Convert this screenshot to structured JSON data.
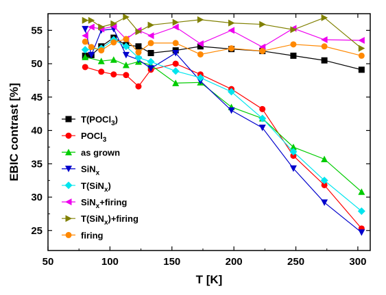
{
  "chart_data": {
    "type": "line",
    "xlabel": "T [K]",
    "ylabel": "EBIC contrast [%]",
    "xlim": [
      50,
      310
    ],
    "ylim": [
      22,
      57.5
    ],
    "x_ticks": [
      50,
      100,
      150,
      200,
      250,
      300
    ],
    "y_ticks": [
      25,
      30,
      35,
      40,
      45,
      50,
      55
    ],
    "grid": false,
    "legend_position": "left",
    "series": [
      {
        "name": "T(POCl3)",
        "legend_main": "T(POCl",
        "legend_sub": "3",
        "legend_tail": ")",
        "color": "#000000",
        "marker": "square",
        "x": [
          80,
          85,
          93,
          103,
          113,
          123,
          133,
          153,
          173,
          198,
          223,
          248,
          273,
          303
        ],
        "y": [
          51.2,
          51.3,
          52.6,
          53.9,
          52.8,
          52.6,
          51.6,
          52.0,
          52.6,
          52.2,
          51.9,
          51.2,
          50.5,
          49.1
        ]
      },
      {
        "name": "POCl3",
        "legend_main": "POCl",
        "legend_sub": "3",
        "legend_tail": "",
        "color": "#ff0000",
        "marker": "circle",
        "x": [
          80,
          93,
          103,
          113,
          123,
          133,
          153,
          173,
          198,
          223,
          248,
          273,
          303
        ],
        "y": [
          49.5,
          48.8,
          48.4,
          48.3,
          46.6,
          49.1,
          50.0,
          48.4,
          46.2,
          43.2,
          36.2,
          31.8,
          25.3
        ]
      },
      {
        "name": "as grown",
        "legend_main": "as grown",
        "legend_sub": "",
        "legend_tail": "",
        "color": "#00cc00",
        "marker": "triangle-up",
        "x": [
          80,
          93,
          103,
          113,
          123,
          133,
          153,
          173,
          198,
          223,
          248,
          273,
          303
        ],
        "y": [
          51.0,
          50.4,
          50.6,
          49.8,
          50.3,
          49.8,
          47.1,
          47.2,
          43.5,
          41.8,
          37.5,
          35.7,
          30.8
        ]
      },
      {
        "name": "SiNx",
        "legend_main": "SiN",
        "legend_sub": "x",
        "legend_tail": "",
        "color": "#0000cc",
        "marker": "triangle-down",
        "x": [
          80,
          85,
          93,
          103,
          113,
          123,
          133,
          153,
          173,
          198,
          223,
          248,
          273,
          303
        ],
        "y": [
          55.2,
          51.3,
          55.0,
          55.2,
          51.3,
          50.6,
          49.3,
          51.6,
          47.4,
          43.0,
          40.4,
          34.3,
          29.2,
          24.7
        ]
      },
      {
        "name": "T(SiNx)",
        "legend_main": "T(SiN",
        "legend_sub": "x",
        "legend_tail": ")",
        "color": "#00e5ee",
        "marker": "diamond",
        "x": [
          80,
          93,
          103,
          113,
          123,
          133,
          153,
          173,
          198,
          223,
          248,
          273,
          303
        ],
        "y": [
          52.1,
          52.3,
          53.6,
          52.6,
          50.9,
          50.3,
          48.9,
          47.9,
          45.8,
          41.8,
          36.8,
          32.5,
          27.9
        ]
      },
      {
        "name": "SiNx+firing",
        "legend_main": "SiN",
        "legend_sub": "x",
        "legend_tail": "+firing",
        "color": "#ee00ee",
        "marker": "triangle-left",
        "x": [
          80,
          85,
          93,
          103,
          113,
          123,
          133,
          153,
          173,
          198,
          223,
          248,
          273,
          303
        ],
        "y": [
          54.2,
          55.5,
          55.2,
          55.6,
          53.7,
          55.0,
          54.2,
          55.5,
          53.0,
          55.0,
          52.5,
          55.3,
          53.6,
          53.5
        ]
      },
      {
        "name": "T(SiNx)+firing",
        "legend_main": "T(SiN",
        "legend_sub": "x",
        "legend_tail": ")+firing",
        "color": "#808000",
        "marker": "triangle-right",
        "x": [
          80,
          85,
          93,
          103,
          113,
          123,
          133,
          153,
          173,
          198,
          223,
          248,
          273,
          303
        ],
        "y": [
          56.5,
          56.5,
          55.5,
          56.0,
          57.0,
          54.8,
          55.8,
          56.2,
          56.6,
          56.1,
          55.9,
          55.1,
          56.9,
          52.3
        ]
      },
      {
        "name": "firing",
        "legend_main": "firing",
        "legend_sub": "",
        "legend_tail": "",
        "color": "#ff8800",
        "marker": "circle",
        "x": [
          80,
          85,
          93,
          103,
          113,
          123,
          133,
          153,
          173,
          198,
          223,
          248,
          273,
          303
        ],
        "y": [
          53.3,
          52.5,
          52.0,
          53.2,
          53.7,
          51.7,
          53.1,
          53.1,
          51.4,
          52.3,
          51.9,
          52.9,
          52.6,
          51.2
        ]
      }
    ]
  }
}
